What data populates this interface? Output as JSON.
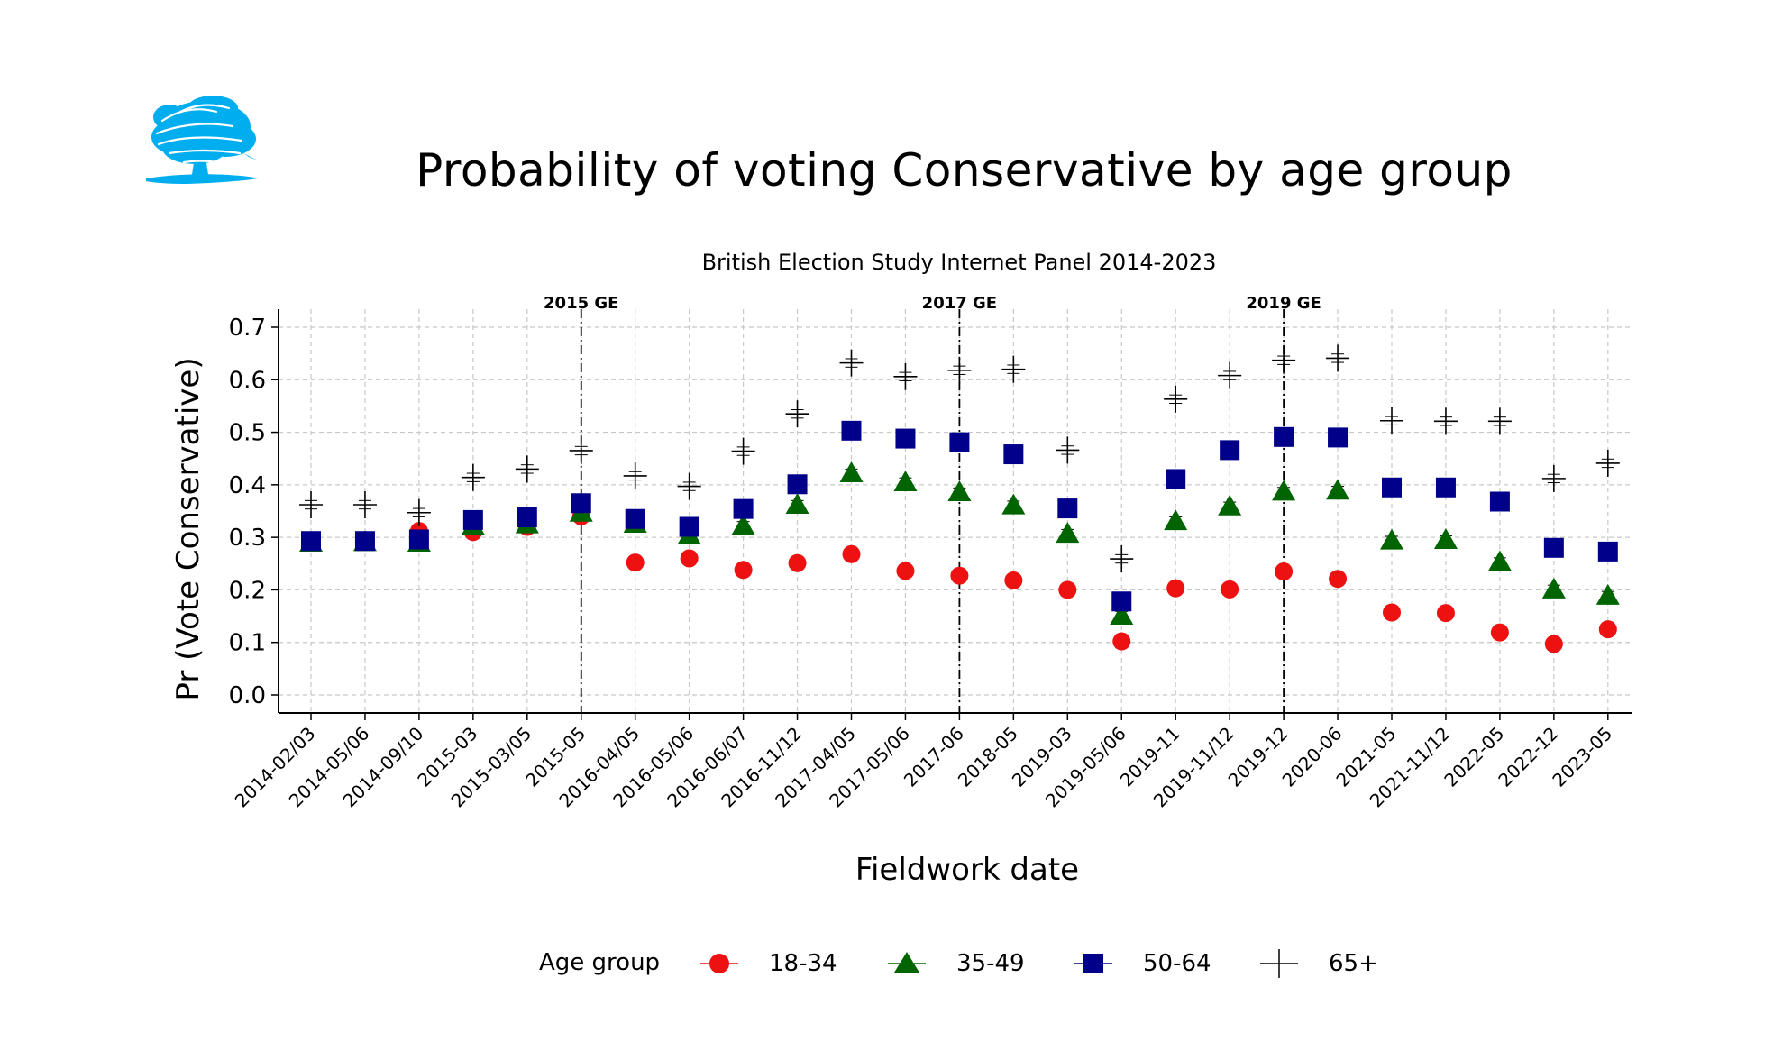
{
  "header": {
    "title": "Probability of voting Conservative by age group",
    "subtitle": "British Election Study Internet Panel 2014-2023"
  },
  "logo": {
    "icon": "conservative-tree-logo",
    "color": "#00AEEF"
  },
  "legend": {
    "title": "Age group",
    "items": [
      {
        "label": "18-34",
        "marker": "circle",
        "color": "#EE1111"
      },
      {
        "label": "35-49",
        "marker": "triangle",
        "color": "#006400"
      },
      {
        "label": "50-64",
        "marker": "square",
        "color": "#00008B"
      },
      {
        "label": "65+",
        "marker": "plus",
        "color": "#000000"
      }
    ]
  },
  "chart_data": {
    "type": "scatter",
    "xlabel": "Fieldwork date",
    "ylabel": "Pr (Vote Conservative)",
    "ylim": [
      0.0,
      0.7
    ],
    "yticks": [
      "0.0",
      "0.1",
      "0.2",
      "0.3",
      "0.4",
      "0.5",
      "0.6",
      "0.7"
    ],
    "grid": true,
    "legend_position": "bottom",
    "categories": [
      "2014-02/03",
      "2014-05/06",
      "2014-09/10",
      "2015-03",
      "2015-03/05",
      "2015-05",
      "2016-04/05",
      "2016-05/06",
      "2016-06/07",
      "2016-11/12",
      "2017-04/05",
      "2017-05/06",
      "2017-06",
      "2018-05",
      "2019-03",
      "2019-05/06",
      "2019-11",
      "2019-11/12",
      "2019-12",
      "2020-06",
      "2021-05",
      "2021-11/12",
      "2022-05",
      "2022-12",
      "2023-05"
    ],
    "series": [
      {
        "name": "18-34",
        "marker": "circle",
        "color": "#EE1111",
        "values": [
          0.29,
          0.292,
          0.312,
          0.31,
          0.32,
          0.34,
          0.252,
          0.26,
          0.238,
          0.251,
          0.268,
          0.236,
          0.227,
          0.218,
          0.2,
          0.102,
          0.203,
          0.201,
          0.235,
          0.221,
          0.157,
          0.156,
          0.119,
          0.097,
          0.125
        ]
      },
      {
        "name": "35-49",
        "marker": "triangle",
        "color": "#006400",
        "values": [
          0.29,
          0.291,
          0.29,
          0.322,
          0.325,
          0.347,
          0.326,
          0.304,
          0.322,
          0.362,
          0.422,
          0.405,
          0.386,
          0.361,
          0.307,
          0.151,
          0.331,
          0.359,
          0.387,
          0.389,
          0.294,
          0.295,
          0.253,
          0.201,
          0.189
        ]
      },
      {
        "name": "50-64",
        "marker": "square",
        "color": "#00008B",
        "values": [
          0.293,
          0.293,
          0.296,
          0.333,
          0.338,
          0.365,
          0.335,
          0.32,
          0.354,
          0.401,
          0.503,
          0.488,
          0.481,
          0.458,
          0.355,
          0.178,
          0.411,
          0.466,
          0.491,
          0.49,
          0.395,
          0.395,
          0.368,
          0.28,
          0.273
        ]
      },
      {
        "name": "65+",
        "marker": "plus",
        "color": "#000000",
        "values": [
          0.362,
          0.362,
          0.347,
          0.414,
          0.43,
          0.465,
          0.417,
          0.397,
          0.464,
          0.535,
          0.632,
          0.606,
          0.618,
          0.62,
          0.466,
          0.259,
          0.563,
          0.608,
          0.637,
          0.641,
          0.522,
          0.521,
          0.521,
          0.412,
          0.441
        ]
      }
    ],
    "error_half_width": 0.008,
    "reference_lines": [
      {
        "x": "2015-05",
        "label": "2015 GE"
      },
      {
        "x": "2017-06",
        "label": "2017 GE"
      },
      {
        "x": "2019-12",
        "label": "2019 GE"
      }
    ]
  }
}
